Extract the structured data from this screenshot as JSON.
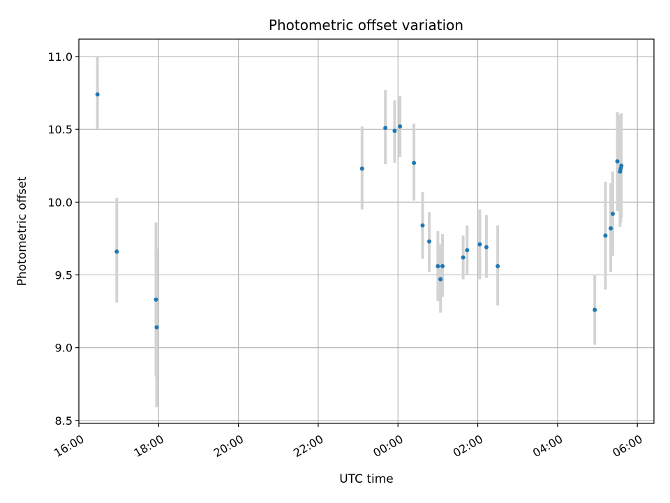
{
  "chart_data": {
    "type": "scatter",
    "title": "Photometric offset variation",
    "xlabel": "UTC time",
    "ylabel": "Photometric offset",
    "xlim": [
      "16:00",
      "06:25"
    ],
    "ylim": [
      8.48,
      11.12
    ],
    "x_ticks": [
      "16:00",
      "18:00",
      "20:00",
      "22:00",
      "00:00",
      "02:00",
      "04:00",
      "06:00"
    ],
    "y_ticks": [
      "8.5",
      "9.0",
      "9.5",
      "10.0",
      "10.5",
      "11.0"
    ],
    "grid": true,
    "colors": {
      "point": "#1f77b4",
      "errorbar": "#d3d3d3",
      "grid": "#b0b0b0"
    },
    "points": [
      {
        "t": "16:28",
        "y": 10.74,
        "lo": 10.5,
        "hi": 11.0
      },
      {
        "t": "16:57",
        "y": 9.66,
        "lo": 9.31,
        "hi": 10.03
      },
      {
        "t": "17:56",
        "y": 9.33,
        "lo": 8.8,
        "hi": 9.86
      },
      {
        "t": "17:57",
        "y": 9.14,
        "lo": 8.59,
        "hi": 9.68
      },
      {
        "t": "23:06",
        "y": 10.23,
        "lo": 9.95,
        "hi": 10.52
      },
      {
        "t": "23:41",
        "y": 10.51,
        "lo": 10.26,
        "hi": 10.77
      },
      {
        "t": "23:55",
        "y": 10.49,
        "lo": 10.27,
        "hi": 10.7
      },
      {
        "t": "00:03",
        "y": 10.52,
        "lo": 10.31,
        "hi": 10.73
      },
      {
        "t": "00:24",
        "y": 10.27,
        "lo": 10.01,
        "hi": 10.54
      },
      {
        "t": "00:37",
        "y": 9.84,
        "lo": 9.61,
        "hi": 10.07
      },
      {
        "t": "00:47",
        "y": 9.73,
        "lo": 9.52,
        "hi": 9.93
      },
      {
        "t": "01:00",
        "y": 9.56,
        "lo": 9.32,
        "hi": 9.8
      },
      {
        "t": "01:04",
        "y": 9.47,
        "lo": 9.24,
        "hi": 9.71
      },
      {
        "t": "01:07",
        "y": 9.56,
        "lo": 9.35,
        "hi": 9.78
      },
      {
        "t": "01:38",
        "y": 9.62,
        "lo": 9.47,
        "hi": 9.77
      },
      {
        "t": "01:44",
        "y": 9.67,
        "lo": 9.5,
        "hi": 9.84
      },
      {
        "t": "02:03",
        "y": 9.71,
        "lo": 9.47,
        "hi": 9.95
      },
      {
        "t": "02:13",
        "y": 9.69,
        "lo": 9.48,
        "hi": 9.91
      },
      {
        "t": "02:30",
        "y": 9.56,
        "lo": 9.29,
        "hi": 9.84
      },
      {
        "t": "04:56",
        "y": 9.26,
        "lo": 9.02,
        "hi": 9.5
      },
      {
        "t": "05:12",
        "y": 9.77,
        "lo": 9.4,
        "hi": 10.14
      },
      {
        "t": "05:20",
        "y": 9.82,
        "lo": 9.52,
        "hi": 10.13
      },
      {
        "t": "05:23",
        "y": 9.92,
        "lo": 9.63,
        "hi": 10.21
      },
      {
        "t": "05:30",
        "y": 10.28,
        "lo": 9.94,
        "hi": 10.62
      },
      {
        "t": "05:34",
        "y": 10.21,
        "lo": 9.83,
        "hi": 10.6
      },
      {
        "t": "05:35",
        "y": 10.23,
        "lo": 9.86,
        "hi": 10.6
      },
      {
        "t": "05:36",
        "y": 10.25,
        "lo": 9.89,
        "hi": 10.61
      }
    ]
  }
}
